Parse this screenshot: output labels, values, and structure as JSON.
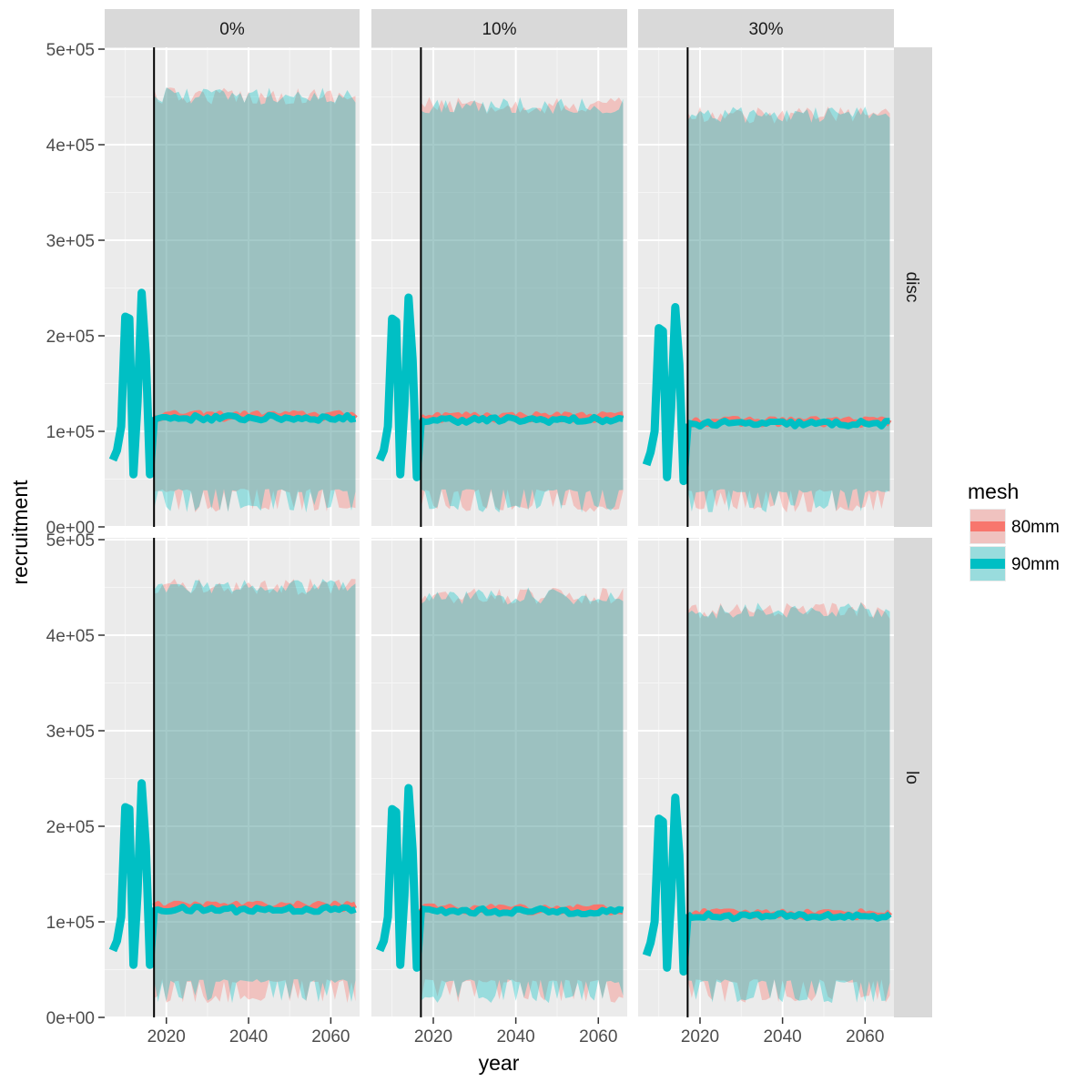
{
  "chart_data": {
    "type": "area",
    "xlabel": "year",
    "ylabel": "recruitment",
    "xlim": [
      2005,
      2067
    ],
    "ylim": [
      0,
      500000
    ],
    "x_ticks": [
      2020,
      2040,
      2060
    ],
    "x_tick_labels": [
      "2020",
      "2040",
      "2060"
    ],
    "y_ticks": [
      0,
      100000,
      200000,
      300000,
      400000,
      500000
    ],
    "y_tick_labels": [
      "0e+00",
      "1e+05",
      "2e+05",
      "3e+05",
      "4e+05",
      "5e+05"
    ],
    "vline_x": 2017,
    "col_facets": [
      "0%",
      "10%",
      "30%"
    ],
    "row_facets": [
      "disc",
      "lo"
    ],
    "grid": true,
    "legend": {
      "title": "mesh",
      "position": "right",
      "entries": [
        {
          "label": "80mm",
          "color": "#F8766D"
        },
        {
          "label": "90mm",
          "color": "#00BFC4"
        }
      ]
    },
    "historical": {
      "x": [
        2007,
        2008,
        2009,
        2010,
        2011,
        2012,
        2013,
        2014,
        2015,
        2016,
        2017
      ],
      "values_by_col": [
        [
          70000,
          80000,
          105000,
          220000,
          218000,
          55000,
          130000,
          245000,
          180000,
          55000,
          115000
        ],
        [
          70000,
          80000,
          105000,
          218000,
          215000,
          55000,
          128000,
          240000,
          175000,
          52000,
          112000
        ],
        [
          65000,
          78000,
          100000,
          208000,
          205000,
          52000,
          125000,
          230000,
          170000,
          48000,
          108000
        ]
      ]
    },
    "projection": {
      "x_range": [
        2017,
        2066
      ],
      "cells": [
        {
          "col": "0%",
          "row": "disc",
          "median_80mm": 116000,
          "median_90mm": 114000,
          "upper": 460000,
          "lower": 40000,
          "lower_min": 15000
        },
        {
          "col": "10%",
          "row": "disc",
          "median_80mm": 115000,
          "median_90mm": 112000,
          "upper": 450000,
          "lower": 40000,
          "lower_min": 15000
        },
        {
          "col": "30%",
          "row": "disc",
          "median_80mm": 110000,
          "median_90mm": 108000,
          "upper": 440000,
          "lower": 40000,
          "lower_min": 15000
        },
        {
          "col": "0%",
          "row": "lo",
          "median_80mm": 116000,
          "median_90mm": 113000,
          "upper": 460000,
          "lower": 40000,
          "lower_min": 15000
        },
        {
          "col": "10%",
          "row": "lo",
          "median_80mm": 113000,
          "median_90mm": 111000,
          "upper": 450000,
          "lower": 40000,
          "lower_min": 15000
        },
        {
          "col": "30%",
          "row": "lo",
          "median_80mm": 108000,
          "median_90mm": 106000,
          "upper": 435000,
          "lower": 40000,
          "lower_min": 15000
        }
      ]
    }
  }
}
